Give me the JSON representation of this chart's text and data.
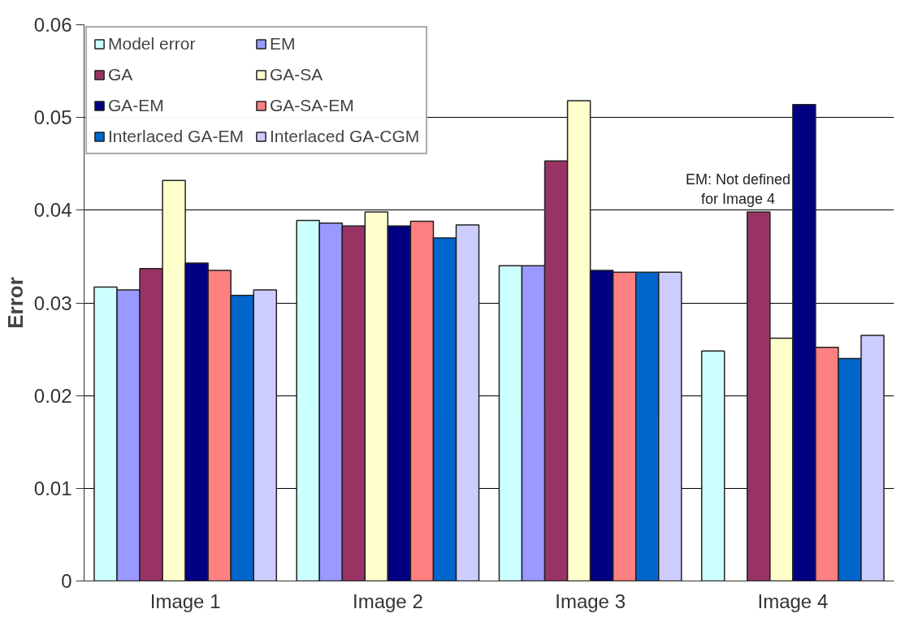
{
  "chart_data": {
    "type": "bar",
    "ylabel": "Error",
    "categories": [
      "Image 1",
      "Image 2",
      "Image 3",
      "Image 4"
    ],
    "series": [
      {
        "name": "Model error",
        "color": "#ccffff",
        "values": [
          0.0317,
          0.0389,
          0.034,
          0.0248
        ]
      },
      {
        "name": "EM",
        "color": "#9999ff",
        "values": [
          0.0314,
          0.0386,
          0.034,
          null
        ]
      },
      {
        "name": "GA",
        "color": "#993366",
        "values": [
          0.0337,
          0.0383,
          0.0453,
          0.0398
        ]
      },
      {
        "name": "GA-SA",
        "color": "#ffffcc",
        "values": [
          0.0432,
          0.0398,
          0.0518,
          0.0262
        ]
      },
      {
        "name": "GA-EM",
        "color": "#000080",
        "values": [
          0.0343,
          0.0383,
          0.0335,
          0.0514
        ]
      },
      {
        "name": "GA-SA-EM",
        "color": "#ff8080",
        "values": [
          0.0335,
          0.0388,
          0.0333,
          0.0252
        ]
      },
      {
        "name": "Interlaced GA-EM",
        "color": "#0066cc",
        "values": [
          0.0308,
          0.037,
          0.0333,
          0.024
        ]
      },
      {
        "name": "Interlaced GA-CGM",
        "color": "#ccccff",
        "values": [
          0.0314,
          0.0384,
          0.0333,
          0.0265
        ]
      }
    ],
    "ylim": [
      0,
      0.06
    ],
    "yticks": [
      0,
      0.01,
      0.02,
      0.03,
      0.04,
      0.05,
      0.06
    ],
    "grid": "y",
    "legend": "top left",
    "annotations": [
      "EM: Not defined\nfor Image 4"
    ]
  }
}
